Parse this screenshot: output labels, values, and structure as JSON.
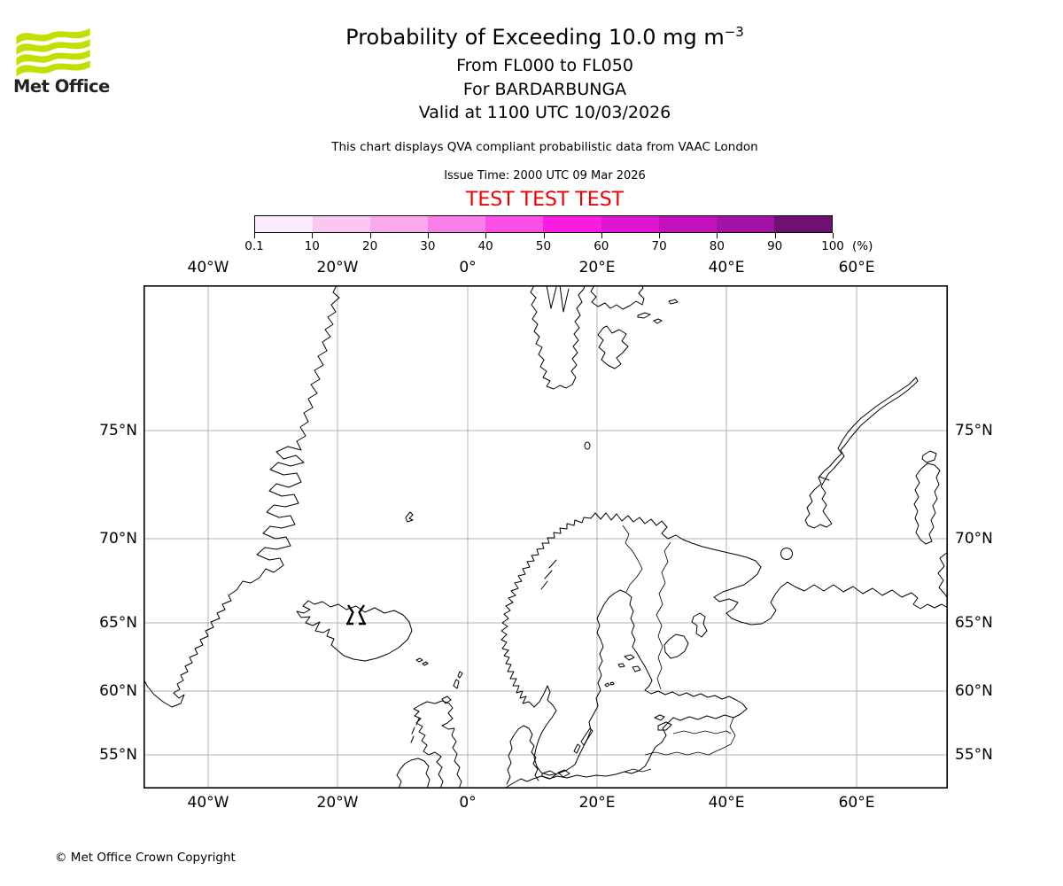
{
  "branding": {
    "logo_text": "Met Office",
    "logo_green": "#c3df00"
  },
  "header": {
    "title_main": "Probability of Exceeding 10.0 mg m",
    "title_exp": "−3",
    "subtitle_levels": "From FL000 to FL050",
    "subtitle_volcano": "For BARDARBUNGA",
    "subtitle_valid": "Valid at 1100 UTC 10/03/2026",
    "info": "This chart displays QVA compliant probabilistic data from VAAC London",
    "issue": "Issue Time: 2000 UTC 09 Mar 2026",
    "test_banner": "TEST TEST TEST",
    "test_color": "#ee0000"
  },
  "colorbar": {
    "tick_labels": [
      "0.1",
      "10",
      "20",
      "30",
      "40",
      "50",
      "60",
      "70",
      "80",
      "90",
      "100"
    ],
    "unit": "(%)",
    "colors": [
      "#fdeafa",
      "#fac7f1",
      "#f9a9ec",
      "#f97ee8",
      "#fb4fe5",
      "#fa1ce1",
      "#de16d1",
      "#c312bb",
      "#a312a4",
      "#701070"
    ]
  },
  "map": {
    "lon_labels": [
      "40°W",
      "20°W",
      "0°",
      "20°E",
      "40°E",
      "60°E"
    ],
    "lat_labels": [
      "75°N",
      "70°N",
      "65°N",
      "60°N",
      "55°N"
    ],
    "grid_color": "#b2b2b2",
    "volcano_symbol": "volcano at Bardarbunga, Iceland"
  },
  "footer": {
    "copyright": "© Met Office Crown Copyright"
  }
}
